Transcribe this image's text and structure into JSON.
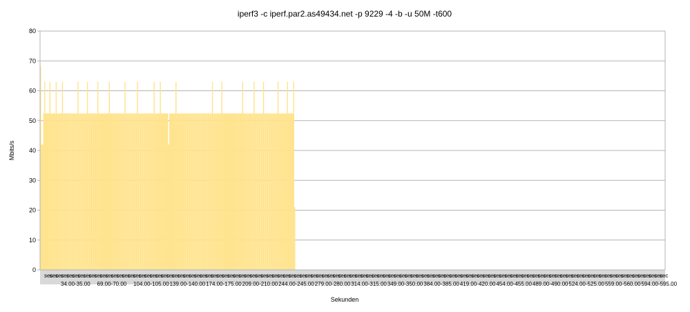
{
  "chart_data": {
    "type": "bar",
    "title": "iperf3 -c iperf.par2.as49434.net -p 9229 -4 -b -u 50M -t600",
    "xlabel": "Sekunden",
    "ylabel": "Mbits/s",
    "ylim": [
      0,
      80
    ],
    "yticks": [
      0,
      10,
      20,
      30,
      40,
      50,
      60,
      70,
      80
    ],
    "grid": true,
    "legend": "none",
    "bar_color": "#ffe38c",
    "tick_unit": "sec",
    "x_label_first_interval": "34.00-35.00",
    "x_label_values": [
      "34.00-35.00",
      "69.00-70.00",
      "104.00-105.00",
      "139.00-140.00",
      "174.00-175.00",
      "209.00-210.00",
      "244.00-245.00",
      "279.00-280.00",
      "314.00-315.00",
      "349.00-350.00",
      "384.00-385.00",
      "419.00-420.00",
      "454.00-455.00",
      "489.00-490.00",
      "524.00-525.00",
      "559.00-560.00",
      "594.00-595.00"
    ],
    "x_label_display": [
      "34.00-35.00",
      "69.00-70.00",
      "104.00-105.00",
      "139.00-140.00",
      "174.00-175.00",
      "209.00-210.00",
      "244.00-245.00",
      "279.00-280.00",
      "314.00-315.00",
      "349.00-350.00",
      "384.00-385.00",
      "419.00-420.00",
      "454.00-455.00",
      "489.00-490.00",
      "524.00-525.00",
      "559.00-560.00",
      "594.00-595.00"
    ],
    "interval_count": 600,
    "values": [
      68.2,
      42.0,
      42.0,
      52.4,
      63.0,
      52.4,
      52.4,
      52.4,
      52.4,
      63.0,
      52.4,
      52.4,
      52.4,
      52.4,
      52.4,
      63.0,
      52.4,
      52.4,
      52.4,
      52.4,
      52.4,
      63.0,
      52.4,
      52.4,
      52.4,
      52.4,
      52.4,
      52.4,
      52.4,
      52.4,
      52.4,
      52.4,
      52.4,
      52.4,
      52.4,
      52.4,
      63.0,
      52.4,
      52.4,
      52.4,
      52.4,
      52.4,
      52.4,
      52.4,
      52.4,
      63.0,
      52.4,
      52.4,
      52.4,
      52.4,
      52.4,
      52.4,
      52.4,
      52.4,
      52.4,
      63.0,
      52.4,
      52.4,
      52.4,
      52.4,
      52.4,
      52.4,
      52.4,
      52.4,
      52.4,
      52.4,
      63.0,
      52.4,
      52.4,
      52.4,
      52.4,
      52.4,
      52.4,
      52.4,
      52.4,
      52.4,
      52.4,
      52.4,
      52.4,
      52.4,
      52.4,
      63.0,
      52.4,
      52.4,
      52.4,
      52.4,
      52.4,
      52.4,
      52.4,
      52.4,
      52.4,
      52.4,
      52.4,
      63.0,
      52.4,
      52.4,
      52.4,
      52.4,
      52.4,
      52.4,
      52.4,
      52.4,
      52.4,
      52.4,
      52.4,
      52.4,
      52.4,
      52.4,
      52.4,
      63.0,
      52.4,
      52.4,
      52.4,
      52.4,
      52.4,
      63.0,
      52.4,
      52.4,
      52.4,
      52.4,
      52.4,
      52.4,
      52.4,
      42.0,
      52.4,
      52.4,
      52.4,
      52.4,
      52.4,
      52.4,
      63.0,
      52.4,
      52.4,
      52.4,
      52.4,
      52.4,
      52.4,
      52.4,
      52.4,
      52.4,
      52.4,
      52.4,
      52.4,
      52.4,
      52.4,
      52.4,
      52.4,
      52.4,
      52.4,
      52.4,
      52.4,
      52.4,
      52.4,
      52.4,
      52.4,
      52.4,
      52.4,
      52.4,
      52.4,
      52.4,
      52.4,
      52.4,
      52.4,
      52.4,
      52.4,
      63.0,
      52.4,
      52.4,
      52.4,
      52.4,
      52.4,
      52.4,
      52.4,
      52.4,
      63.0,
      52.4,
      52.4,
      52.4,
      52.4,
      52.4,
      52.4,
      52.4,
      52.4,
      52.4,
      52.4,
      52.4,
      52.4,
      52.4,
      52.4,
      52.4,
      52.4,
      52.4,
      52.4,
      52.4,
      63.0,
      52.4,
      52.4,
      52.4,
      52.4,
      52.4,
      52.4,
      52.4,
      52.4,
      52.4,
      52.4,
      63.0,
      52.4,
      52.4,
      52.4,
      52.4,
      52.4,
      52.4,
      52.4,
      52.4,
      63.0,
      52.4,
      52.4,
      52.4,
      52.4,
      52.4,
      52.4,
      52.4,
      52.4,
      52.4,
      52.4,
      52.4,
      52.4,
      52.4,
      63.0,
      52.4,
      52.4,
      52.4,
      52.4,
      52.4,
      52.4,
      52.4,
      52.4,
      63.0,
      52.4,
      52.4,
      52.4,
      52.4,
      52.4,
      63.0,
      21.0,
      0,
      0,
      0,
      0,
      0,
      0,
      0,
      0,
      0,
      0,
      0,
      0,
      0,
      0,
      0,
      0,
      0,
      0,
      0,
      0,
      0,
      0,
      0,
      0,
      0,
      0,
      0,
      0,
      0,
      0,
      0,
      0,
      0,
      0,
      0,
      0,
      0,
      0,
      0,
      0,
      0,
      0,
      0,
      0,
      0,
      0,
      0,
      0,
      0,
      0,
      0,
      0,
      0,
      0,
      0,
      0,
      0,
      0,
      0,
      0,
      0,
      0,
      0,
      0,
      0,
      0,
      0,
      0,
      0,
      0,
      0,
      0,
      0,
      0,
      0,
      0,
      0,
      0,
      0,
      0,
      0,
      0,
      0,
      0,
      0,
      0,
      0,
      0,
      0,
      0,
      0,
      0,
      0,
      0,
      0,
      0,
      0,
      0,
      0,
      0,
      0,
      0,
      0,
      0,
      0,
      0,
      0,
      0,
      0,
      0,
      0,
      0,
      0,
      0,
      0,
      0,
      0,
      0,
      0,
      0,
      0,
      0,
      0,
      0,
      0,
      0,
      0,
      0,
      0,
      0,
      0,
      0,
      0,
      0,
      0,
      0,
      0,
      0,
      0,
      0,
      0,
      0,
      0,
      0,
      0,
      0,
      0,
      0,
      0,
      0,
      0,
      0,
      0,
      0,
      0,
      0,
      0,
      0,
      0,
      0,
      0,
      0,
      0,
      0,
      0,
      0,
      0,
      0,
      0,
      0,
      0,
      0,
      0,
      0,
      0,
      0,
      0,
      0,
      0,
      0,
      0,
      0,
      0,
      0,
      0,
      0,
      0,
      0,
      0,
      0,
      0,
      0,
      0,
      0,
      0,
      0,
      0,
      0,
      0,
      0,
      0,
      0,
      0,
      0,
      0,
      0,
      0,
      0,
      0,
      0,
      0,
      0,
      0,
      0,
      0,
      0,
      0,
      0,
      0,
      0,
      0,
      0,
      0,
      0,
      0,
      0,
      0,
      0,
      0,
      0,
      0,
      0,
      0,
      0,
      0,
      0,
      0,
      0,
      0,
      0,
      0,
      0,
      0,
      0,
      0,
      0,
      0,
      0,
      0,
      0,
      0,
      0,
      0,
      0,
      0,
      0,
      0,
      0,
      0,
      0,
      0,
      0,
      0,
      0,
      0,
      0,
      0,
      0,
      0,
      0,
      0,
      0,
      0,
      0,
      0,
      0,
      0,
      0,
      0,
      0,
      0,
      0,
      0,
      0,
      0,
      0,
      0,
      0,
      0,
      0,
      0,
      0,
      0,
      0,
      0,
      0,
      0,
      0,
      0,
      0,
      0,
      0,
      0,
      0,
      0,
      0,
      0,
      0,
      0,
      0,
      0,
      0,
      0,
      0,
      0,
      0,
      0,
      0,
      0,
      0,
      0,
      0,
      0,
      0,
      0,
      0,
      0,
      0,
      0,
      0,
      0,
      0,
      0,
      0,
      0,
      0,
      0,
      0,
      0,
      0,
      0,
      0,
      0,
      0,
      0,
      0,
      0,
      0,
      0,
      0,
      0,
      0,
      0,
      0,
      0,
      0,
      0,
      0,
      0,
      0,
      0,
      0,
      0,
      0,
      0,
      0,
      0,
      0,
      0,
      0,
      0,
      0,
      0,
      0,
      0,
      0,
      0,
      0,
      0,
      0,
      0,
      0,
      0,
      0,
      0,
      0,
      0,
      0,
      0,
      0,
      0,
      0,
      0,
      0,
      0,
      0,
      0,
      0,
      0,
      0,
      0,
      0,
      0,
      0,
      0,
      0,
      0,
      0,
      0,
      0,
      0,
      0,
      0,
      0,
      0,
      0,
      0,
      0,
      0,
      0,
      0,
      0,
      0,
      0,
      0,
      0,
      0,
      0,
      0,
      0,
      0,
      0,
      0,
      0,
      0,
      0,
      0,
      0,
      0,
      0,
      0,
      0,
      0,
      0,
      0,
      0,
      0,
      0,
      0,
      0,
      0,
      0,
      0,
      0,
      0,
      0,
      0,
      0,
      0,
      0,
      0
    ]
  }
}
